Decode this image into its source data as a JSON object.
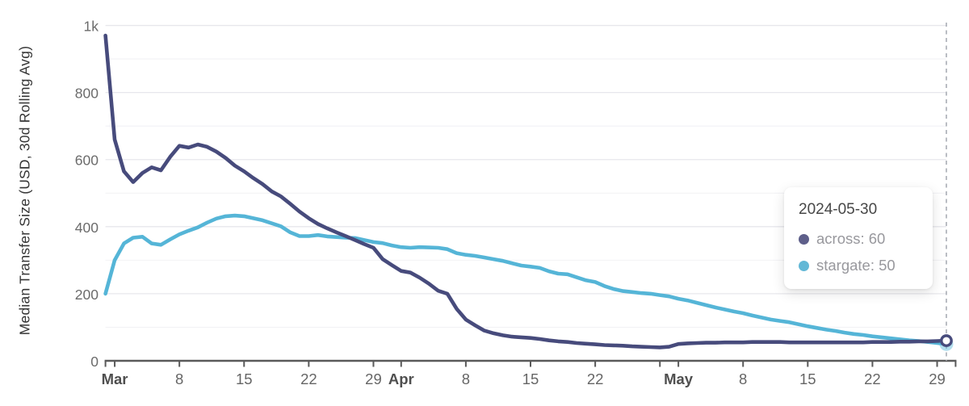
{
  "y_axis_title": "Median Transfer Size (USD, 30d Rolling Avg)",
  "tooltip": {
    "date": "2024-05-30",
    "rows": [
      {
        "series": "across",
        "text": "across: 60",
        "dot_color": "#5e5f8a"
      },
      {
        "series": "stargate",
        "text": "stargate: 50",
        "dot_color": "#63b8d6"
      }
    ]
  },
  "colors": {
    "across_line": "#474b7c",
    "stargate_line": "#55b5d7",
    "grid_major": "#e7e7ec",
    "grid_minor": "#f2f2f5",
    "axis": "#5a5a5a",
    "x_label_month": "#4f4f4f",
    "x_label_day": "#666666",
    "y_label": "#6b6b6b",
    "cursor_dash": "#a9adb5",
    "marker_fill": "#ffffff"
  },
  "chart_data": {
    "type": "line",
    "title": "",
    "xlabel": "",
    "ylabel": "Median Transfer Size (USD, 30d Rolling Avg)",
    "x_start_date": "2024-02-29",
    "x_end_date": "2024-05-30",
    "ylim": [
      0,
      1000
    ],
    "grid": true,
    "legend_position": "tooltip-overlay",
    "y_axis": {
      "ticks": [
        {
          "value": 0,
          "label": "0"
        },
        {
          "value": 200,
          "label": "200"
        },
        {
          "value": 400,
          "label": "400"
        },
        {
          "value": 600,
          "label": "600"
        },
        {
          "value": 800,
          "label": "800"
        },
        {
          "value": 1000,
          "label": "1k"
        }
      ],
      "minor": [
        100,
        300,
        500,
        700,
        900
      ]
    },
    "x_axis": {
      "ticks": [
        {
          "day": 0,
          "label": "",
          "bold": false
        },
        {
          "day": 1,
          "label": "Mar",
          "bold": true
        },
        {
          "day": 8,
          "label": "8",
          "bold": false
        },
        {
          "day": 15,
          "label": "15",
          "bold": false
        },
        {
          "day": 22,
          "label": "22",
          "bold": false
        },
        {
          "day": 29,
          "label": "29",
          "bold": false
        },
        {
          "day": 32,
          "label": "Apr",
          "bold": true
        },
        {
          "day": 39,
          "label": "8",
          "bold": false
        },
        {
          "day": 46,
          "label": "15",
          "bold": false
        },
        {
          "day": 53,
          "label": "22",
          "bold": false
        },
        {
          "day": 60,
          "label": "",
          "bold": false
        },
        {
          "day": 62,
          "label": "May",
          "bold": true
        },
        {
          "day": 69,
          "label": "8",
          "bold": false
        },
        {
          "day": 76,
          "label": "15",
          "bold": false
        },
        {
          "day": 83,
          "label": "22",
          "bold": false
        },
        {
          "day": 90,
          "label": "29",
          "bold": false
        },
        {
          "day": 92,
          "label": "",
          "bold": false
        }
      ]
    },
    "cursor": {
      "date": "2024-05-30",
      "day_index": 91,
      "across": 60,
      "stargate": 50
    },
    "series": [
      {
        "name": "across",
        "color": "#474b7c",
        "values": [
          970,
          660,
          565,
          533,
          560,
          577,
          568,
          608,
          641,
          636,
          645,
          638,
          624,
          605,
          582,
          565,
          545,
          527,
          505,
          490,
          468,
          445,
          425,
          408,
          395,
          383,
          372,
          360,
          348,
          337,
          303,
          285,
          268,
          263,
          248,
          230,
          209,
          200,
          155,
          123,
          106,
          90,
          82,
          76,
          72,
          70,
          68,
          65,
          61,
          58,
          56,
          53,
          51,
          49,
          47,
          46,
          45,
          43,
          42,
          41,
          40,
          42,
          50,
          52,
          53,
          54,
          54,
          55,
          55,
          55,
          56,
          56,
          56,
          56,
          55,
          55,
          55,
          55,
          55,
          55,
          55,
          55,
          55,
          56,
          56,
          56,
          57,
          57,
          58,
          58,
          59,
          60
        ]
      },
      {
        "name": "stargate",
        "color": "#55b5d7",
        "values": [
          200,
          300,
          350,
          367,
          370,
          350,
          346,
          362,
          377,
          388,
          398,
          412,
          424,
          431,
          433,
          431,
          425,
          419,
          410,
          401,
          383,
          372,
          372,
          375,
          371,
          369,
          367,
          366,
          360,
          354,
          351,
          344,
          339,
          337,
          339,
          338,
          337,
          333,
          321,
          316,
          313,
          308,
          303,
          298,
          291,
          284,
          281,
          277,
          267,
          260,
          258,
          249,
          240,
          235,
          223,
          214,
          208,
          205,
          202,
          200,
          196,
          192,
          185,
          180,
          173,
          166,
          159,
          153,
          147,
          142,
          135,
          129,
          123,
          119,
          115,
          109,
          103,
          98,
          93,
          89,
          84,
          80,
          77,
          73,
          70,
          67,
          64,
          61,
          59,
          56,
          53,
          50
        ]
      }
    ]
  }
}
